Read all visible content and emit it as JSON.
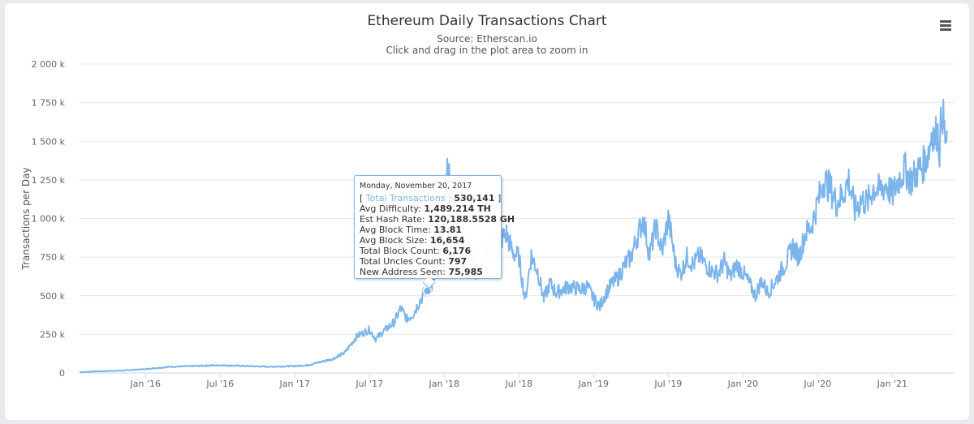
{
  "chart_data": {
    "type": "line",
    "title": "Ethereum Daily Transactions Chart",
    "subtitle": "Source: Etherscan.io",
    "hint": "Click and drag in the plot area to zoom in",
    "xlabel": "",
    "ylabel": "Transactions per Day",
    "ylim": [
      0,
      2000
    ],
    "y_ticks": [
      {
        "value": 0,
        "label": "0"
      },
      {
        "value": 250,
        "label": "250 k"
      },
      {
        "value": 500,
        "label": "500 k"
      },
      {
        "value": 750,
        "label": "750 k"
      },
      {
        "value": 1000,
        "label": "1 000 k"
      },
      {
        "value": 1250,
        "label": "1 250 k"
      },
      {
        "value": 1500,
        "label": "1 500 k"
      },
      {
        "value": 1750,
        "label": "1 750 k"
      },
      {
        "value": 2000,
        "label": "2 000 k"
      }
    ],
    "x_ticks": [
      {
        "month": 5,
        "label": "Jan '16"
      },
      {
        "month": 11,
        "label": "Jul '16"
      },
      {
        "month": 17,
        "label": "Jan '17"
      },
      {
        "month": 23,
        "label": "Jul '17"
      },
      {
        "month": 29,
        "label": "Jan '18"
      },
      {
        "month": 35,
        "label": "Jul '18"
      },
      {
        "month": 41,
        "label": "Jan '19"
      },
      {
        "month": 47,
        "label": "Jul '19"
      },
      {
        "month": 53,
        "label": "Jan '20"
      },
      {
        "month": 59,
        "label": "Jul '20"
      },
      {
        "month": 65,
        "label": "Jan '21"
      }
    ],
    "xlim_months": [
      -0.3,
      70.0
    ],
    "grid": true,
    "legend": "none",
    "series": [
      {
        "name": "Total Transactions",
        "color": "#7cb5ec",
        "x_months": [
          -0.3,
          1,
          3,
          5,
          7,
          9,
          11,
          13,
          15,
          17,
          18,
          19,
          20,
          21,
          22,
          23,
          23.5,
          24,
          25,
          25.5,
          26,
          26.5,
          27,
          27.5,
          28,
          28.5,
          29,
          29.3,
          29.6,
          30,
          30.5,
          31,
          31.5,
          32,
          32.5,
          33,
          33.5,
          34,
          34.5,
          35,
          35.5,
          36,
          36.5,
          37,
          37.5,
          38,
          39,
          40,
          40.5,
          41,
          41.5,
          42,
          42.5,
          43,
          43.5,
          44,
          44.5,
          45,
          45.5,
          46,
          46.5,
          47,
          47.3,
          47.6,
          48,
          48.5,
          49,
          49.5,
          50,
          50.5,
          51,
          51.5,
          52,
          52.5,
          53,
          53.5,
          54,
          54.5,
          55,
          55.5,
          56,
          56.5,
          57,
          57.5,
          58,
          58.5,
          59,
          59.5,
          60,
          60.5,
          61,
          61.5,
          62,
          62.5,
          63,
          63.5,
          64,
          64.5,
          65,
          65.5,
          66,
          66.5,
          67,
          67.5,
          68,
          68.2,
          68.4,
          68.6,
          68.8,
          69,
          69.2,
          69.4
        ],
        "values": [
          5,
          10,
          15,
          25,
          40,
          45,
          50,
          45,
          40,
          45,
          50,
          70,
          90,
          130,
          240,
          280,
          220,
          260,
          330,
          420,
          350,
          380,
          460,
          530,
          560,
          700,
          1000,
          1350,
          1150,
          900,
          820,
          860,
          650,
          700,
          820,
          750,
          860,
          900,
          780,
          750,
          470,
          760,
          660,
          480,
          580,
          520,
          560,
          540,
          560,
          480,
          430,
          520,
          580,
          620,
          700,
          750,
          880,
          1000,
          760,
          950,
          780,
          1000,
          860,
          700,
          640,
          750,
          700,
          760,
          700,
          660,
          640,
          720,
          620,
          700,
          650,
          580,
          500,
          600,
          520,
          580,
          650,
          720,
          820,
          750,
          900,
          950,
          1100,
          1250,
          1200,
          1100,
          1150,
          1250,
          1050,
          1120,
          1100,
          1200,
          1180,
          1220,
          1150,
          1250,
          1320,
          1250,
          1300,
          1350,
          1450,
          1600,
          1500,
          1580,
          1450,
          1720,
          1550,
          1450
        ]
      }
    ],
    "tooltip": {
      "month": 27.65,
      "date": "Monday, November 20, 2017",
      "series_label": "Total Transactions",
      "series_value": "530,141",
      "rows": [
        {
          "label": "Avg Difficulty:",
          "value": "1,489.214 TH"
        },
        {
          "label": "Est Hash Rate:",
          "value": "120,188.5528 GH"
        },
        {
          "label": "Avg Block Time:",
          "value": "13.81"
        },
        {
          "label": "Avg Block Size:",
          "value": "16,654"
        },
        {
          "label": "Total Block Count:",
          "value": "6,176"
        },
        {
          "label": "Total Uncles Count:",
          "value": "797"
        },
        {
          "label": "New Address Seen:",
          "value": "75,985"
        }
      ],
      "point_value": 530
    }
  },
  "menu": {
    "icon": "hamburger-menu-icon"
  }
}
